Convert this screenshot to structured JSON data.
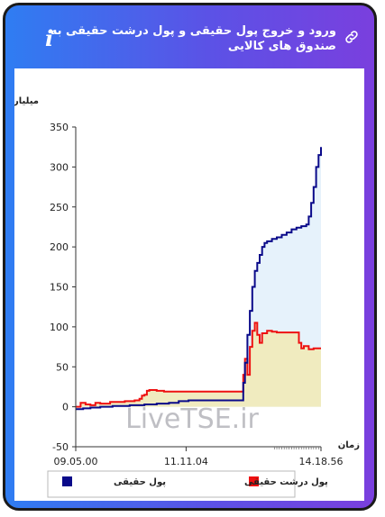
{
  "header": {
    "title": "ورود و خروج پول حقیقی و پول درشت حقیقی به صندوق های کالایی",
    "info_icon": "info-icon",
    "link_icon": "link-icon"
  },
  "watermark": "LiveTSE.ir",
  "chart_data": {
    "type": "area",
    "ylabel": "میلیارد تومان",
    "xlabel": "زمان",
    "ylim": [
      -50,
      350
    ],
    "yticks": [
      350,
      300,
      250,
      200,
      150,
      100,
      50,
      0,
      -50
    ],
    "xticks": [
      "09.05.00",
      "11.11.04",
      "14.18.56"
    ],
    "colors": {
      "real_money": "#0a0a8a",
      "big_real_money": "#ee1111",
      "real_fill": "#e6f2fb",
      "big_fill": "#f0ebbf"
    },
    "series": [
      {
        "name": "پول حقیقی",
        "color": "#0a0a8a",
        "points": [
          [
            0,
            -3
          ],
          [
            3,
            -2
          ],
          [
            6,
            -1
          ],
          [
            10,
            0
          ],
          [
            15,
            1
          ],
          [
            22,
            2
          ],
          [
            28,
            3
          ],
          [
            33,
            4
          ],
          [
            38,
            5
          ],
          [
            42,
            7
          ],
          [
            46,
            8
          ],
          [
            50,
            8
          ],
          [
            55,
            8
          ],
          [
            60,
            8
          ],
          [
            65,
            8
          ],
          [
            68,
            8
          ],
          [
            68.3,
            30
          ],
          [
            69,
            55
          ],
          [
            70,
            90
          ],
          [
            71,
            120
          ],
          [
            72,
            150
          ],
          [
            73,
            170
          ],
          [
            74,
            180
          ],
          [
            75,
            190
          ],
          [
            76,
            200
          ],
          [
            77,
            205
          ],
          [
            78,
            207
          ],
          [
            80,
            210
          ],
          [
            82,
            212
          ],
          [
            84,
            215
          ],
          [
            86,
            218
          ],
          [
            88,
            222
          ],
          [
            90,
            224
          ],
          [
            92,
            226
          ],
          [
            94,
            228
          ],
          [
            95,
            238
          ],
          [
            96,
            255
          ],
          [
            97,
            275
          ],
          [
            98,
            300
          ],
          [
            99,
            315
          ],
          [
            100,
            325
          ]
        ]
      },
      {
        "name": "پول درشت حقیقی",
        "color": "#ee1111",
        "points": [
          [
            0,
            0
          ],
          [
            2,
            5
          ],
          [
            4,
            3
          ],
          [
            6,
            2
          ],
          [
            8,
            5
          ],
          [
            10,
            4
          ],
          [
            12,
            4
          ],
          [
            14,
            6
          ],
          [
            16,
            6
          ],
          [
            20,
            7
          ],
          [
            24,
            8
          ],
          [
            26,
            10
          ],
          [
            27,
            14
          ],
          [
            28,
            15
          ],
          [
            29,
            20
          ],
          [
            30,
            21
          ],
          [
            33,
            20
          ],
          [
            36,
            19
          ],
          [
            40,
            19
          ],
          [
            44,
            19
          ],
          [
            48,
            19
          ],
          [
            52,
            19
          ],
          [
            56,
            19
          ],
          [
            60,
            19
          ],
          [
            64,
            19
          ],
          [
            67,
            19
          ],
          [
            68,
            19
          ],
          [
            68.3,
            40
          ],
          [
            69,
            60
          ],
          [
            70,
            40
          ],
          [
            71,
            75
          ],
          [
            72,
            95
          ],
          [
            73,
            105
          ],
          [
            74,
            90
          ],
          [
            75,
            80
          ],
          [
            76,
            92
          ],
          [
            78,
            95
          ],
          [
            80,
            94
          ],
          [
            82,
            93
          ],
          [
            84,
            93
          ],
          [
            86,
            93
          ],
          [
            88,
            93
          ],
          [
            90,
            93
          ],
          [
            91,
            80
          ],
          [
            92,
            73
          ],
          [
            93,
            76
          ],
          [
            95,
            72
          ],
          [
            97,
            73
          ],
          [
            100,
            73
          ]
        ]
      }
    ],
    "legend": [
      {
        "label": "پول حقیقی",
        "color": "#0a0a8a"
      },
      {
        "label": "پول درشت حقیقی",
        "color": "#ee1111"
      }
    ]
  }
}
